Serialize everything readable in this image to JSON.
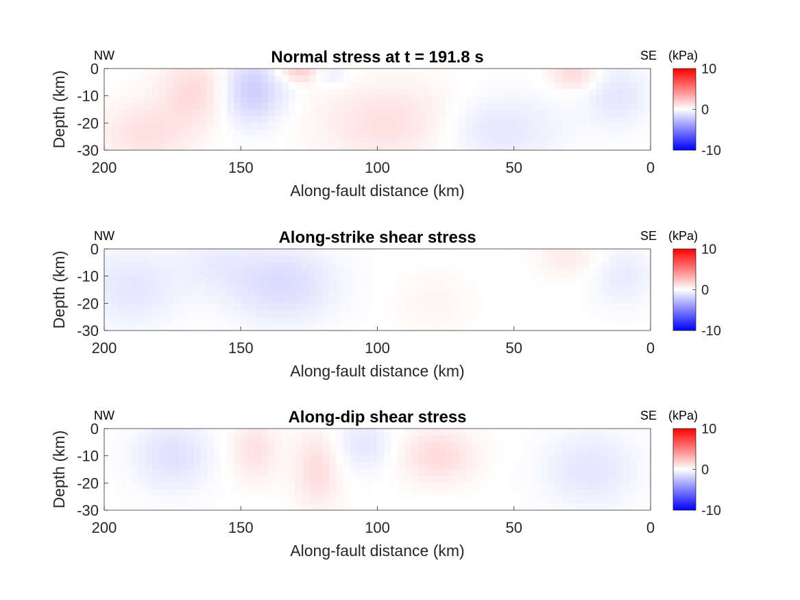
{
  "chart_data": [
    {
      "type": "heatmap",
      "title": "Normal stress at t = 191.8 s",
      "xlabel": "Along-fault distance (km)",
      "ylabel": "Depth (km)",
      "xlim": [
        200,
        0
      ],
      "ylim": [
        -30,
        0
      ],
      "xticks": [
        "200",
        "150",
        "100",
        "50",
        "0"
      ],
      "yticks": [
        "0",
        "-10",
        "-20",
        "-30"
      ],
      "left_label": "NW",
      "right_label": "SE",
      "colorbar": {
        "unit": "(kPa)",
        "range": [
          -10,
          10
        ],
        "ticks": [
          "10",
          "0",
          "-10"
        ]
      },
      "anomalies": [
        {
          "x": 165,
          "depth": -8,
          "amp": 1.6,
          "sx": 10,
          "sd": 9
        },
        {
          "x": 185,
          "depth": -24,
          "amp": 1.2,
          "sx": 12,
          "sd": 8
        },
        {
          "x": 147,
          "depth": -8,
          "amp": -2.2,
          "sx": 9,
          "sd": 9
        },
        {
          "x": 128,
          "depth": -1,
          "amp": 2.0,
          "sx": 6,
          "sd": 3
        },
        {
          "x": 92,
          "depth": -20,
          "amp": 1.4,
          "sx": 20,
          "sd": 10
        },
        {
          "x": 60,
          "depth": -22,
          "amp": -1.2,
          "sx": 18,
          "sd": 9
        },
        {
          "x": 28,
          "depth": -2,
          "amp": 1.5,
          "sx": 6,
          "sd": 4
        },
        {
          "x": 12,
          "depth": -10,
          "amp": -1.0,
          "sx": 8,
          "sd": 8
        },
        {
          "x": 118,
          "depth": -2,
          "amp": -1.0,
          "sx": 5,
          "sd": 3
        }
      ]
    },
    {
      "type": "heatmap",
      "title": "Along-strike shear stress",
      "xlabel": "Along-fault distance (km)",
      "ylabel": "Depth (km)",
      "xlim": [
        200,
        0
      ],
      "ylim": [
        -30,
        0
      ],
      "xticks": [
        "200",
        "150",
        "100",
        "50",
        "0"
      ],
      "yticks": [
        "0",
        "-10",
        "-20",
        "-30"
      ],
      "left_label": "NW",
      "right_label": "SE",
      "colorbar": {
        "unit": "(kPa)",
        "range": [
          -10,
          10
        ],
        "ticks": [
          "10",
          "0",
          "-10"
        ]
      },
      "anomalies": [
        {
          "x": 190,
          "depth": -14,
          "amp": -1.0,
          "sx": 12,
          "sd": 10
        },
        {
          "x": 135,
          "depth": -13,
          "amp": -1.4,
          "sx": 14,
          "sd": 10
        },
        {
          "x": 160,
          "depth": -5,
          "amp": -0.6,
          "sx": 10,
          "sd": 8
        },
        {
          "x": 30,
          "depth": -3,
          "amp": 0.8,
          "sx": 8,
          "sd": 5
        },
        {
          "x": 10,
          "depth": -10,
          "amp": -0.8,
          "sx": 8,
          "sd": 8
        },
        {
          "x": 80,
          "depth": -20,
          "amp": 0.4,
          "sx": 10,
          "sd": 8
        }
      ]
    },
    {
      "type": "heatmap",
      "title": "Along-dip shear stress",
      "xlabel": "Along-fault distance (km)",
      "ylabel": "Depth (km)",
      "xlim": [
        200,
        0
      ],
      "ylim": [
        -30,
        0
      ],
      "xticks": [
        "200",
        "150",
        "100",
        "50",
        "0"
      ],
      "yticks": [
        "0",
        "-10",
        "-20",
        "-30"
      ],
      "left_label": "NW",
      "right_label": "SE",
      "colorbar": {
        "unit": "(kPa)",
        "range": [
          -10,
          10
        ],
        "ticks": [
          "10",
          "0",
          "-10"
        ]
      },
      "anomalies": [
        {
          "x": 175,
          "depth": -10,
          "amp": -1.2,
          "sx": 10,
          "sd": 9
        },
        {
          "x": 145,
          "depth": -8,
          "amp": 1.2,
          "sx": 6,
          "sd": 8
        },
        {
          "x": 122,
          "depth": -15,
          "amp": 1.4,
          "sx": 6,
          "sd": 10
        },
        {
          "x": 105,
          "depth": -6,
          "amp": -1.0,
          "sx": 8,
          "sd": 7
        },
        {
          "x": 78,
          "depth": -10,
          "amp": 1.4,
          "sx": 10,
          "sd": 7
        },
        {
          "x": 22,
          "depth": -15,
          "amp": -1.0,
          "sx": 12,
          "sd": 10
        }
      ]
    }
  ]
}
